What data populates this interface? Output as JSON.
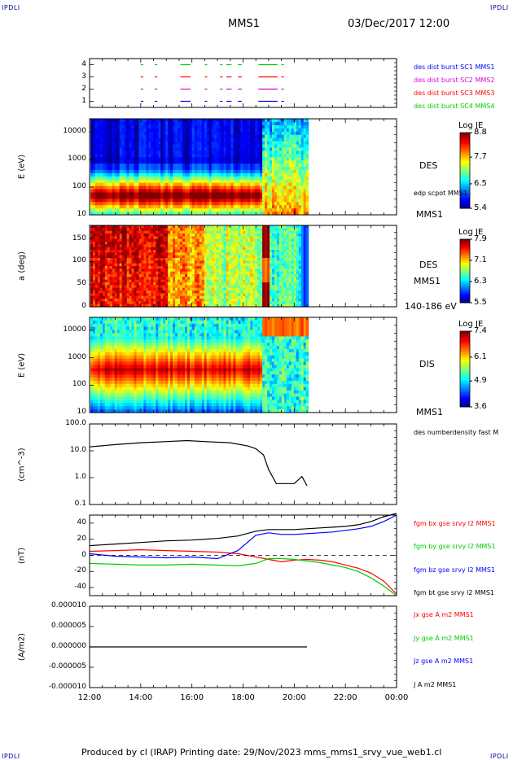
{
  "header": {
    "corner_tl": "IPDLI",
    "corner_tr": "IPDLI",
    "corner_bl": "IPDLI",
    "corner_br": "IPDLI",
    "spacecraft": "MMS1",
    "datetime": "03/Dec/2017 12:00"
  },
  "footer": {
    "text": "Produced by cl (IRAP)   Printing date: 29/Nov/2023   mms_mms1_srvy_vue_web1.cl"
  },
  "time_axis": {
    "ticks": [
      "12:00",
      "14:00",
      "16:00",
      "18:00",
      "20:00",
      "22:00",
      "00:00"
    ],
    "hours": [
      12,
      14,
      16,
      18,
      20,
      22,
      24
    ],
    "range": [
      12,
      24
    ]
  },
  "chart_data": [
    {
      "type": "scatter",
      "id": "burst",
      "yticks": [
        "1",
        "2",
        "3",
        "4"
      ],
      "ylim": [
        0.5,
        4.5
      ],
      "legend": [
        {
          "label": "des dist burst SC1 MMS1",
          "color": "#0000ff"
        },
        {
          "label": "des dist burst SC2 MMS2",
          "color": "#dd00dd"
        },
        {
          "label": "des dist burst SC3 MMS3",
          "color": "#ff0000"
        },
        {
          "label": "des dist burst SC4 MMS4",
          "color": "#00cc00"
        }
      ],
      "intervals_hours": [
        [
          14.0,
          14.05
        ],
        [
          14.55,
          14.6
        ],
        [
          15.55,
          15.9
        ],
        [
          16.5,
          16.55
        ],
        [
          17.1,
          17.15
        ],
        [
          17.35,
          17.5
        ],
        [
          17.8,
          17.9
        ],
        [
          18.6,
          19.3
        ],
        [
          19.5,
          19.55
        ]
      ]
    },
    {
      "type": "heatmap",
      "id": "des-energy",
      "ylabel": "E (eV)",
      "yticks": [
        "10",
        "100",
        "1000",
        "10000"
      ],
      "ylog": [
        10,
        30000
      ],
      "side_label": "DES",
      "extra_label": "edp scpot MMS1",
      "bottom_label": "MMS1",
      "colorbar": {
        "title": "Log JE",
        "ticks": [
          "8.8",
          "7.7",
          "6.5",
          "5.4"
        ],
        "range": [
          5.4,
          8.8
        ]
      }
    },
    {
      "type": "heatmap",
      "id": "des-pitch",
      "ylabel": "a (deg)",
      "yticks": [
        "0",
        "50",
        "100",
        "150"
      ],
      "ylim": [
        0,
        180
      ],
      "side_label": "DES",
      "extra_label": "MMS1",
      "bottom_label": "140-186 eV",
      "colorbar": {
        "title": "Log JE",
        "ticks": [
          "7.9",
          "7.1",
          "6.3",
          "5.5"
        ],
        "range": [
          5.5,
          7.9
        ]
      }
    },
    {
      "type": "heatmap",
      "id": "dis-energy",
      "ylabel": "E (eV)",
      "yticks": [
        "10",
        "100",
        "1000",
        "10000"
      ],
      "ylog": [
        10,
        30000
      ],
      "side_label": "DIS",
      "bottom_label": "MMS1",
      "colorbar": {
        "title": "Log JE",
        "ticks": [
          "7.4",
          "6.1",
          "4.9",
          "3.6"
        ],
        "range": [
          3.6,
          7.4
        ]
      }
    },
    {
      "type": "line",
      "id": "density",
      "ylabel": "(cm^-3)",
      "yticks": [
        "0.1",
        "1.0",
        "10.0",
        "100.0"
      ],
      "ylog": [
        0.1,
        100
      ],
      "legend": [
        {
          "label": "des numberdensity fast M",
          "color": "#000000"
        }
      ],
      "x": [
        12.0,
        13.0,
        14.0,
        15.0,
        15.8,
        16.5,
        17.5,
        18.2,
        18.5,
        18.8,
        19.0,
        19.3,
        19.7,
        20.0,
        20.3,
        20.5
      ],
      "y": [
        14,
        17,
        20,
        22,
        24,
        22,
        20,
        15,
        12,
        7,
        2,
        0.6,
        0.6,
        0.6,
        1.1,
        0.5
      ]
    },
    {
      "type": "line",
      "id": "bfield",
      "ylabel": "(nT)",
      "yticks": [
        "-40",
        "-20",
        "0",
        "20",
        "40"
      ],
      "ylim": [
        -50,
        50
      ],
      "legend": [
        {
          "label": "fgm bx gse srvy l2 MMS1",
          "color": "#ff0000"
        },
        {
          "label": "fgm by gse srvy l2 MMS1",
          "color": "#00cc00"
        },
        {
          "label": "fgm bz gse srvy l2 MMS1",
          "color": "#0000ff"
        },
        {
          "label": "fgm bt gse srvy l2 MMS1",
          "color": "#000000"
        }
      ],
      "x": [
        12.0,
        13.0,
        14.0,
        15.0,
        16.0,
        17.0,
        17.8,
        18.5,
        19.0,
        19.5,
        20.0,
        20.5,
        21.0,
        21.5,
        22.0,
        22.5,
        23.0,
        23.5,
        24.0
      ],
      "series": [
        {
          "name": "fgm bx gse srvy l2 MMS1",
          "values": [
            5,
            6,
            7,
            6,
            5,
            4,
            2,
            -2,
            -5,
            -8,
            -6,
            -5,
            -6,
            -8,
            -12,
            -16,
            -22,
            -32,
            -48
          ]
        },
        {
          "name": "fgm by gse srvy l2 MMS1",
          "values": [
            -10,
            -11,
            -12,
            -12,
            -11,
            -12,
            -13,
            -10,
            -4,
            -4,
            -5,
            -7,
            -9,
            -12,
            -15,
            -20,
            -28,
            -38,
            -50
          ]
        },
        {
          "name": "fgm bz gse srvy l2 MMS1",
          "values": [
            2,
            -1,
            -2,
            -3,
            -2,
            -4,
            6,
            25,
            28,
            26,
            26,
            27,
            28,
            29,
            31,
            33,
            36,
            42,
            50
          ]
        },
        {
          "name": "fgm bt gse srvy l2 MMS1",
          "values": [
            12,
            14,
            16,
            18,
            19,
            21,
            24,
            30,
            32,
            32,
            32,
            33,
            34,
            35,
            36,
            38,
            42,
            48,
            52
          ]
        }
      ]
    },
    {
      "type": "line",
      "id": "current",
      "ylabel": "(A/m2)",
      "yticks": [
        "-0.000010",
        "-0.000005",
        "0.000000",
        "0.000005",
        "0.000010"
      ],
      "ylim": [
        -1e-05,
        1e-05
      ],
      "legend": [
        {
          "label": "Jx gse A m2 MMS1",
          "color": "#ff0000"
        },
        {
          "label": "Jy gse A m2 MMS1",
          "color": "#00cc00"
        },
        {
          "label": "Jz gse A m2 MMS1",
          "color": "#0000ff"
        },
        {
          "label": "J A m2 MMS1",
          "color": "#000000"
        }
      ],
      "x": [
        12.0,
        14.0,
        16.0,
        18.0,
        20.0,
        20.5
      ],
      "series": [
        {
          "name": "J A m2 MMS1",
          "values": [
            0,
            0,
            0,
            0,
            0,
            0
          ]
        }
      ]
    }
  ]
}
